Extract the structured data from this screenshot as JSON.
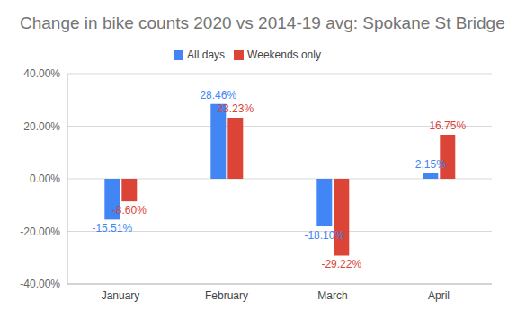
{
  "chart_data": {
    "type": "bar",
    "title": "Change in bike counts 2020 vs 2014-19 avg: Spokane St Bridge",
    "categories": [
      "January",
      "February",
      "March",
      "April"
    ],
    "series": [
      {
        "name": "All days",
        "color": "#4285f4",
        "values": [
          -15.51,
          28.46,
          -18.1,
          2.15
        ],
        "value_labels": [
          "-15.51%",
          "28.46%",
          "-18.10%",
          "2.15%"
        ]
      },
      {
        "name": "Weekends only",
        "color": "#db4437",
        "values": [
          -8.6,
          23.23,
          -29.22,
          16.75
        ],
        "value_labels": [
          "-8.60%",
          "23.23%",
          "-29.22%",
          "16.75%"
        ]
      }
    ],
    "ylim": [
      -40,
      40
    ],
    "yticks": [
      {
        "value": -40,
        "label": "-40.00%"
      },
      {
        "value": -20,
        "label": "-20.00%"
      },
      {
        "value": 0,
        "label": "0.00%"
      },
      {
        "value": 20,
        "label": "20.00%"
      },
      {
        "value": 40,
        "label": "40.00%"
      }
    ],
    "grid": true,
    "legend": "top",
    "data_labels": true
  }
}
